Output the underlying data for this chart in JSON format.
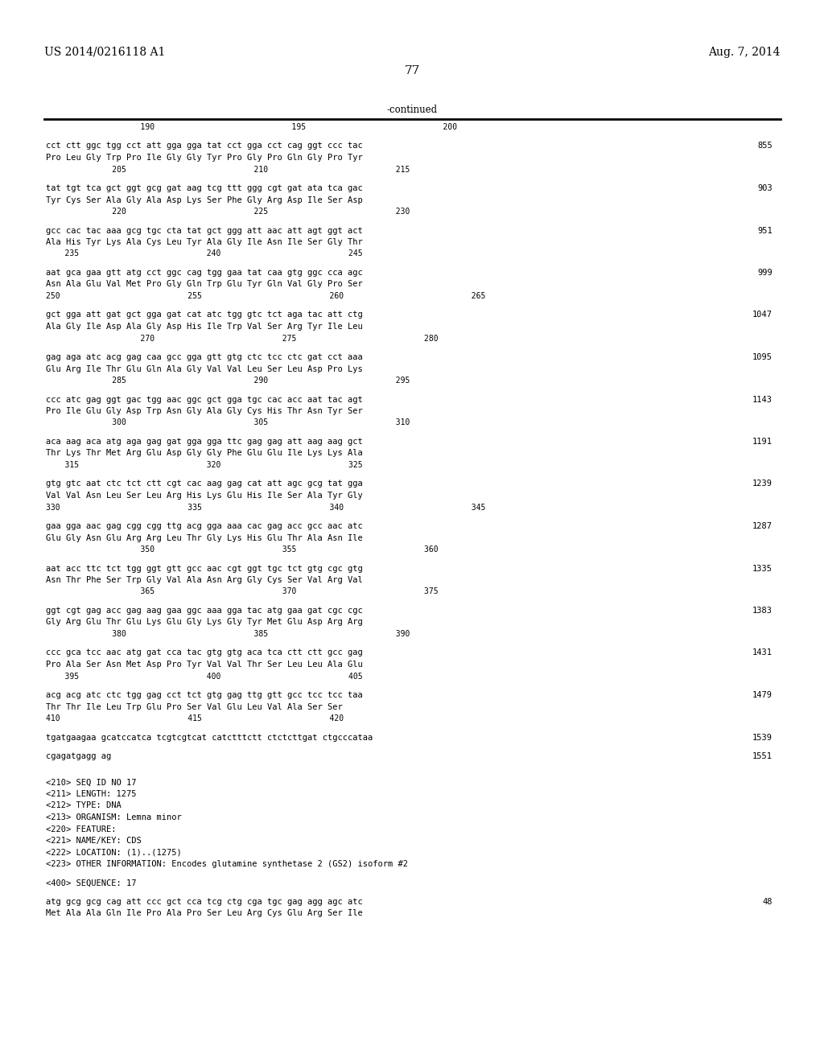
{
  "patent_number": "US 2014/0216118 A1",
  "date": "Aug. 7, 2014",
  "page_number": "77",
  "continued_label": "-continued",
  "background_color": "#ffffff",
  "text_color": "#000000",
  "font_size": 7.5,
  "content": [
    {
      "type": "ruler_numbers",
      "text": "                    190                             195                             200"
    },
    {
      "type": "blank"
    },
    {
      "type": "sequence",
      "dna": "cct ctt ggc tgg cct att gga gga tat cct gga cct cag ggt ccc tac",
      "num": "855"
    },
    {
      "type": "amino",
      "aa": "Pro Leu Gly Trp Pro Ile Gly Gly Tyr Pro Gly Pro Gln Gly Pro Tyr"
    },
    {
      "type": "ruler_numbers",
      "text": "              205                           210                           215"
    },
    {
      "type": "blank"
    },
    {
      "type": "sequence",
      "dna": "tat tgt tca gct ggt gcg gat aag tcg ttt ggg cgt gat ata tca gac",
      "num": "903"
    },
    {
      "type": "amino",
      "aa": "Tyr Cys Ser Ala Gly Ala Asp Lys Ser Phe Gly Arg Asp Ile Ser Asp"
    },
    {
      "type": "ruler_numbers",
      "text": "              220                           225                           230"
    },
    {
      "type": "blank"
    },
    {
      "type": "sequence",
      "dna": "gcc cac tac aaa gcg tgc cta tat gct ggg att aac att agt ggt act",
      "num": "951"
    },
    {
      "type": "amino",
      "aa": "Ala His Tyr Lys Ala Cys Leu Tyr Ala Gly Ile Asn Ile Ser Gly Thr"
    },
    {
      "type": "ruler_numbers",
      "text": "    235                           240                           245"
    },
    {
      "type": "blank"
    },
    {
      "type": "sequence",
      "dna": "aat gca gaa gtt atg cct ggc cag tgg gaa tat caa gtg ggc cca agc",
      "num": "999"
    },
    {
      "type": "amino",
      "aa": "Asn Ala Glu Val Met Pro Gly Gln Trp Glu Tyr Gln Val Gly Pro Ser"
    },
    {
      "type": "ruler_numbers",
      "text": "250                           255                           260                           265"
    },
    {
      "type": "blank"
    },
    {
      "type": "sequence",
      "dna": "gct gga att gat gct gga gat cat atc tgg gtc tct aga tac att ctg",
      "num": "1047"
    },
    {
      "type": "amino",
      "aa": "Ala Gly Ile Asp Ala Gly Asp His Ile Trp Val Ser Arg Tyr Ile Leu"
    },
    {
      "type": "ruler_numbers",
      "text": "                    270                           275                           280"
    },
    {
      "type": "blank"
    },
    {
      "type": "sequence",
      "dna": "gag aga atc acg gag caa gcc gga gtt gtg ctc tcc ctc gat cct aaa",
      "num": "1095"
    },
    {
      "type": "amino",
      "aa": "Glu Arg Ile Thr Glu Gln Ala Gly Val Val Leu Ser Leu Asp Pro Lys"
    },
    {
      "type": "ruler_numbers",
      "text": "              285                           290                           295"
    },
    {
      "type": "blank"
    },
    {
      "type": "sequence",
      "dna": "ccc atc gag ggt gac tgg aac ggc gct gga tgc cac acc aat tac agt",
      "num": "1143"
    },
    {
      "type": "amino",
      "aa": "Pro Ile Glu Gly Asp Trp Asn Gly Ala Gly Cys His Thr Asn Tyr Ser"
    },
    {
      "type": "ruler_numbers",
      "text": "              300                           305                           310"
    },
    {
      "type": "blank"
    },
    {
      "type": "sequence",
      "dna": "aca aag aca atg aga gag gat gga gga ttc gag gag att aag aag gct",
      "num": "1191"
    },
    {
      "type": "amino",
      "aa": "Thr Lys Thr Met Arg Glu Asp Gly Gly Phe Glu Glu Ile Lys Lys Ala"
    },
    {
      "type": "ruler_numbers",
      "text": "    315                           320                           325"
    },
    {
      "type": "blank"
    },
    {
      "type": "sequence",
      "dna": "gtg gtc aat ctc tct ctt cgt cac aag gag cat att agc gcg tat gga",
      "num": "1239"
    },
    {
      "type": "amino",
      "aa": "Val Val Asn Leu Ser Leu Arg His Lys Glu His Ile Ser Ala Tyr Gly"
    },
    {
      "type": "ruler_numbers",
      "text": "330                           335                           340                           345"
    },
    {
      "type": "blank"
    },
    {
      "type": "sequence",
      "dna": "gaa gga aac gag cgg cgg ttg acg gga aaa cac gag acc gcc aac atc",
      "num": "1287"
    },
    {
      "type": "amino",
      "aa": "Glu Gly Asn Glu Arg Arg Leu Thr Gly Lys His Glu Thr Ala Asn Ile"
    },
    {
      "type": "ruler_numbers",
      "text": "                    350                           355                           360"
    },
    {
      "type": "blank"
    },
    {
      "type": "sequence",
      "dna": "aat acc ttc tct tgg ggt gtt gcc aac cgt ggt tgc tct gtg cgc gtg",
      "num": "1335"
    },
    {
      "type": "amino",
      "aa": "Asn Thr Phe Ser Trp Gly Val Ala Asn Arg Gly Cys Ser Val Arg Val"
    },
    {
      "type": "ruler_numbers",
      "text": "                    365                           370                           375"
    },
    {
      "type": "blank"
    },
    {
      "type": "sequence",
      "dna": "ggt cgt gag acc gag aag gaa ggc aaa gga tac atg gaa gat cgc cgc",
      "num": "1383"
    },
    {
      "type": "amino",
      "aa": "Gly Arg Glu Thr Glu Lys Glu Gly Lys Gly Tyr Met Glu Asp Arg Arg"
    },
    {
      "type": "ruler_numbers",
      "text": "              380                           385                           390"
    },
    {
      "type": "blank"
    },
    {
      "type": "sequence",
      "dna": "ccc gca tcc aac atg gat cca tac gtg gtg aca tca ctt ctt gcc gag",
      "num": "1431"
    },
    {
      "type": "amino",
      "aa": "Pro Ala Ser Asn Met Asp Pro Tyr Val Val Thr Ser Leu Leu Ala Glu"
    },
    {
      "type": "ruler_numbers",
      "text": "    395                           400                           405"
    },
    {
      "type": "blank"
    },
    {
      "type": "sequence",
      "dna": "acg acg atc ctc tgg gag cct tct gtg gag ttg gtt gcc tcc tcc taa",
      "num": "1479"
    },
    {
      "type": "amino",
      "aa": "Thr Thr Ile Leu Trp Glu Pro Ser Val Glu Leu Val Ala Ser Ser"
    },
    {
      "type": "ruler_numbers",
      "text": "410                           415                           420"
    },
    {
      "type": "blank"
    },
    {
      "type": "sequence_only",
      "dna": "tgatgaagaa gcatccatca tcgtcgtcat catctttctt ctctcttgat ctgcccataa",
      "num": "1539"
    },
    {
      "type": "blank"
    },
    {
      "type": "sequence_only",
      "dna": "cgagatgagg ag",
      "num": "1551"
    },
    {
      "type": "blank"
    },
    {
      "type": "blank"
    },
    {
      "type": "metadata",
      "text": "<210> SEQ ID NO 17"
    },
    {
      "type": "metadata",
      "text": "<211> LENGTH: 1275"
    },
    {
      "type": "metadata",
      "text": "<212> TYPE: DNA"
    },
    {
      "type": "metadata",
      "text": "<213> ORGANISM: Lemna minor"
    },
    {
      "type": "metadata",
      "text": "<220> FEATURE:"
    },
    {
      "type": "metadata",
      "text": "<221> NAME/KEY: CDS"
    },
    {
      "type": "metadata",
      "text": "<222> LOCATION: (1)..(1275)"
    },
    {
      "type": "metadata",
      "text": "<223> OTHER INFORMATION: Encodes glutamine synthetase 2 (GS2) isoform #2"
    },
    {
      "type": "blank"
    },
    {
      "type": "metadata",
      "text": "<400> SEQUENCE: 17"
    },
    {
      "type": "blank"
    },
    {
      "type": "sequence",
      "dna": "atg gcg gcg cag att ccc gct cca tcg ctg cga tgc gag agg agc atc",
      "num": "48"
    },
    {
      "type": "amino",
      "aa": "Met Ala Ala Gln Ile Pro Ala Pro Ser Leu Arg Cys Glu Arg Ser Ile"
    }
  ]
}
